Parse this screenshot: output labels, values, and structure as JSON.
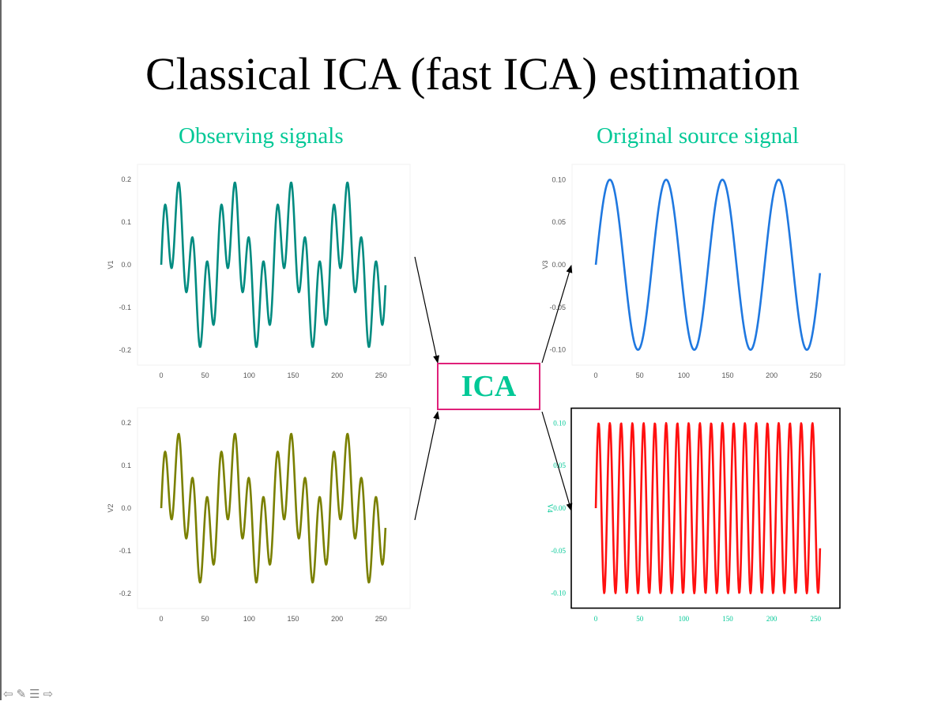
{
  "slide": {
    "title": "Classical ICA (fast ICA) estimation",
    "left_heading": "Observing signals",
    "right_heading": "Original source signal",
    "center_label": "ICA",
    "colors": {
      "heading": "#00c896",
      "box_border": "#e0207a",
      "box_text": "#00c896"
    }
  },
  "nav": {
    "icons": [
      "prev-arrow-icon",
      "pen-icon",
      "menu-icon",
      "next-arrow-icon"
    ]
  },
  "chart_data": [
    {
      "id": "v1",
      "type": "line",
      "ylabel": "V1",
      "series": [
        {
          "color": "#008b80",
          "formula": "0.1*sin(2*pi*x/64)+0.1*sin(2*pi*x/16)"
        }
      ],
      "x": {
        "min": 0,
        "max": 255
      },
      "xlim": [
        -27,
        283
      ],
      "ylim": [
        -0.235,
        0.235
      ],
      "xticks": [
        0,
        50,
        100,
        150,
        200,
        250
      ],
      "yticks": [
        -0.2,
        -0.1,
        0.0,
        0.1,
        0.2
      ],
      "ytick_labels": [
        "-0.2",
        "-0.1",
        "0.0",
        "0.1",
        "0.2"
      ],
      "frame": false,
      "tick_color": "#555555",
      "font": "sans"
    },
    {
      "id": "v2",
      "type": "line",
      "ylabel": "V2",
      "series": [
        {
          "color": "#7a8000",
          "formula": "0.08*sin(2*pi*x/64)+0.1*sin(2*pi*x/16)"
        }
      ],
      "x": {
        "min": 0,
        "max": 255
      },
      "xlim": [
        -27,
        283
      ],
      "ylim": [
        -0.235,
        0.235
      ],
      "xticks": [
        0,
        50,
        100,
        150,
        200,
        250
      ],
      "yticks": [
        -0.2,
        -0.1,
        0.0,
        0.1,
        0.2
      ],
      "ytick_labels": [
        "-0.2",
        "-0.1",
        "0.0",
        "0.1",
        "0.2"
      ],
      "frame": false,
      "tick_color": "#555555",
      "font": "sans"
    },
    {
      "id": "v3",
      "type": "line",
      "ylabel": "V3",
      "series": [
        {
          "color": "#1f78e0",
          "formula": "0.1*sin(2*pi*x/64)"
        }
      ],
      "x": {
        "min": 0,
        "max": 255
      },
      "xlim": [
        -27,
        283
      ],
      "ylim": [
        -0.118,
        0.118
      ],
      "xticks": [
        0,
        50,
        100,
        150,
        200,
        250
      ],
      "yticks": [
        -0.1,
        -0.05,
        0.0,
        0.05,
        0.1
      ],
      "ytick_labels": [
        "-0.10",
        "-0.05",
        "0.00",
        "0.05",
        "0.10"
      ],
      "frame": false,
      "tick_color": "#555555",
      "font": "sans"
    },
    {
      "id": "v4",
      "type": "line",
      "ylabel": "V4",
      "series": [
        {
          "color": "#ff1010",
          "formula": "0.1*sin(2*pi*x/12.8)"
        }
      ],
      "x": {
        "min": 0,
        "max": 255
      },
      "xlim": [
        -27,
        283
      ],
      "ylim": [
        -0.118,
        0.118
      ],
      "xticks": [
        0,
        50,
        100,
        150,
        200,
        250
      ],
      "yticks": [
        -0.1,
        -0.05,
        0.0,
        0.05,
        0.1
      ],
      "ytick_labels": [
        "-0.10",
        "-0.05",
        "0.00",
        "0.05",
        "0.10"
      ],
      "frame": true,
      "tick_color": "#00c896",
      "font": "serif"
    }
  ]
}
